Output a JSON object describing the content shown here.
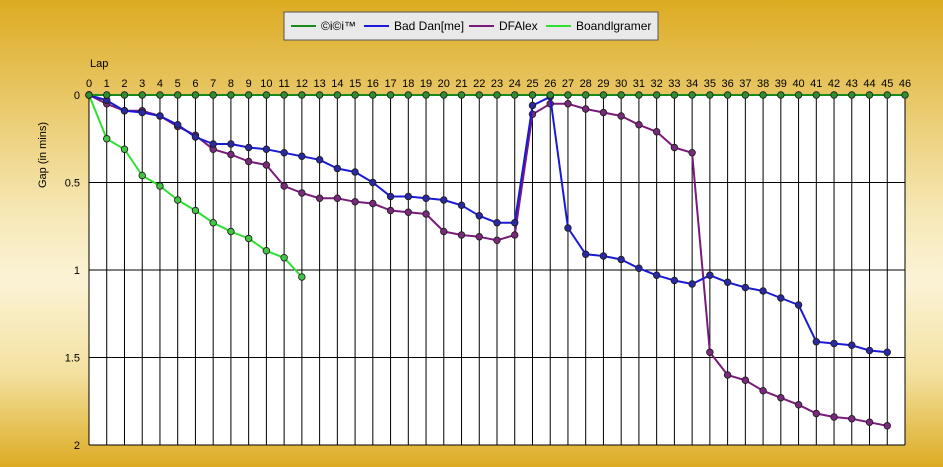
{
  "chart_data": {
    "type": "line",
    "xlabel": "Lap",
    "ylabel": "Gap (in mins)",
    "xlim": [
      0,
      46
    ],
    "ylim": [
      0,
      2
    ],
    "y_inverted": true,
    "x_ticks": [
      0,
      1,
      2,
      3,
      4,
      5,
      6,
      7,
      8,
      9,
      10,
      11,
      12,
      13,
      14,
      15,
      16,
      17,
      18,
      19,
      20,
      21,
      22,
      23,
      24,
      25,
      26,
      27,
      28,
      29,
      30,
      31,
      32,
      33,
      34,
      35,
      36,
      37,
      38,
      39,
      40,
      41,
      42,
      43,
      44,
      45,
      46
    ],
    "y_ticks": [
      {
        "value": 0,
        "label": "0"
      },
      {
        "value": 0.5,
        "label": "0.5"
      },
      {
        "value": 1,
        "label": "1"
      },
      {
        "value": 1.5,
        "label": "1.5"
      },
      {
        "value": 2,
        "label": "2"
      }
    ],
    "grid": true,
    "legend_position": "top-center",
    "series": [
      {
        "name": "©i©i™",
        "color": "#1a8a1a",
        "marker_color": "#2f8f2f",
        "x": [
          0,
          1,
          2,
          3,
          4,
          5,
          6,
          7,
          8,
          9,
          10,
          11,
          12,
          13,
          14,
          15,
          16,
          17,
          18,
          19,
          20,
          21,
          22,
          23,
          24,
          25,
          26,
          27,
          28,
          29,
          30,
          31,
          32,
          33,
          34,
          35,
          36,
          37,
          38,
          39,
          40,
          41,
          42,
          43,
          44,
          45,
          46
        ],
        "values": [
          0,
          0,
          0,
          0,
          0,
          0,
          0,
          0,
          0,
          0,
          0,
          0,
          0,
          0,
          0,
          0,
          0,
          0,
          0,
          0,
          0,
          0,
          0,
          0,
          0,
          0,
          0,
          0,
          0,
          0,
          0,
          0,
          0,
          0,
          0,
          0,
          0,
          0,
          0,
          0,
          0,
          0,
          0,
          0,
          0,
          0,
          0
        ]
      },
      {
        "name": "Bad Dan[me]",
        "color": "#1a1ad6",
        "marker_color": "#2a2aa0",
        "x": [
          0,
          1,
          2,
          3,
          4,
          5,
          6,
          7,
          8,
          9,
          10,
          11,
          12,
          13,
          14,
          15,
          16,
          17,
          18,
          19,
          20,
          21,
          22,
          23,
          24,
          25,
          26,
          27,
          28,
          29,
          30,
          31,
          32,
          33,
          34,
          35,
          36,
          37,
          38,
          39,
          40,
          41,
          42,
          43,
          44,
          45
        ],
        "values": [
          0,
          0.03,
          0.09,
          0.1,
          0.12,
          0.17,
          0.24,
          0.28,
          0.28,
          0.3,
          0.31,
          0.33,
          0.35,
          0.37,
          0.42,
          0.44,
          0.5,
          0.58,
          0.58,
          0.59,
          0.6,
          0.63,
          0.69,
          0.73,
          0.73,
          0.06,
          0.01,
          0.76,
          0.91,
          0.92,
          0.94,
          0.99,
          1.03,
          1.06,
          1.08,
          1.03,
          1.07,
          1.1,
          1.12,
          1.16,
          1.2,
          1.41,
          1.42,
          1.43,
          1.46,
          1.47
        ]
      },
      {
        "name": "DFAlex",
        "color": "#7a1a7a",
        "marker_color": "#7a2a7a",
        "x": [
          0,
          1,
          2,
          3,
          4,
          5,
          6,
          7,
          8,
          9,
          10,
          11,
          12,
          13,
          14,
          15,
          16,
          17,
          18,
          19,
          20,
          21,
          22,
          23,
          24,
          25,
          26,
          27,
          28,
          29,
          30,
          31,
          32,
          33,
          34,
          35,
          36,
          37,
          38,
          39,
          40,
          41,
          42,
          43,
          44,
          45
        ],
        "values": [
          0,
          0.05,
          0.09,
          0.09,
          0.12,
          0.18,
          0.23,
          0.31,
          0.34,
          0.38,
          0.4,
          0.52,
          0.56,
          0.59,
          0.59,
          0.61,
          0.62,
          0.66,
          0.67,
          0.68,
          0.78,
          0.8,
          0.81,
          0.83,
          0.8,
          0.11,
          0.05,
          0.05,
          0.08,
          0.1,
          0.12,
          0.17,
          0.21,
          0.3,
          0.33,
          1.47,
          1.6,
          1.63,
          1.69,
          1.73,
          1.77,
          1.82,
          1.84,
          1.85,
          1.87,
          1.89
        ]
      },
      {
        "name": "Boandlgramer",
        "color": "#2ee02e",
        "marker_color": "#44c444",
        "x": [
          0,
          1,
          2,
          3,
          4,
          5,
          6,
          7,
          8,
          9,
          10,
          11,
          12
        ],
        "values": [
          0,
          0.25,
          0.31,
          0.46,
          0.52,
          0.6,
          0.66,
          0.73,
          0.78,
          0.82,
          0.89,
          0.93,
          1.04
        ]
      }
    ]
  }
}
